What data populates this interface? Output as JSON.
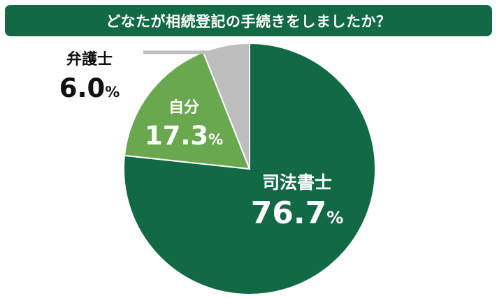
{
  "title": "どなたが相続登記の手続きをしましたか？",
  "colors": {
    "banner": "#126946",
    "title_text": "#ffffff",
    "label_dark": "#111111",
    "label_light": "#ffffff",
    "leader_line": "#bdbdbd"
  },
  "chart_data": {
    "type": "pie",
    "start_angle_deg": 0,
    "direction": "clockwise",
    "slices": [
      {
        "label": "司法書士",
        "value": 76.7,
        "display": "76.7",
        "unit": "%",
        "color": "#126946",
        "label_color": "#ffffff"
      },
      {
        "label": "自分",
        "value": 17.3,
        "display": "17.3",
        "unit": "%",
        "color": "#6aa84f",
        "label_color": "#ffffff"
      },
      {
        "label": "弁護士",
        "value": 6.0,
        "display": "6.0",
        "unit": "%",
        "color": "#bdbdbd",
        "label_color": "#111111"
      }
    ]
  }
}
